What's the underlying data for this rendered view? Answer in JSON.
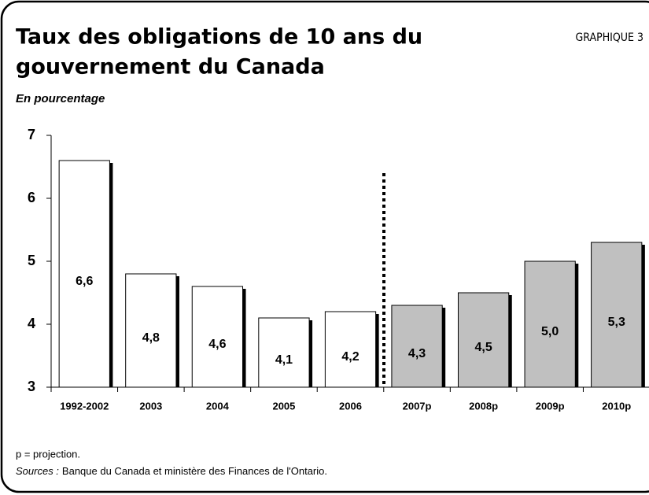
{
  "chart_data": {
    "type": "bar",
    "title": [
      "Taux des obligations de 10 ans du",
      "gouvernement du Canada"
    ],
    "chart_number": "GRAPHIQUE 3",
    "subtitle": "En pourcentage",
    "categories": [
      "1992-2002",
      "2003",
      "2004",
      "2005",
      "2006",
      "2007p",
      "2008p",
      "2009p",
      "2010p"
    ],
    "values": [
      6.6,
      4.8,
      4.6,
      4.1,
      4.2,
      4.3,
      4.5,
      5.0,
      5.3
    ],
    "value_labels": [
      "6,6",
      "4,8",
      "4,6",
      "4,1",
      "4,2",
      "4,3",
      "4,5",
      "5,0",
      "5,3"
    ],
    "colors": [
      "#ffffff",
      "#ffffff",
      "#ffffff",
      "#ffffff",
      "#ffffff",
      "#c0c0c0",
      "#c0c0c0",
      "#c0c0c0",
      "#c0c0c0"
    ],
    "ylim": [
      3,
      7
    ],
    "yticks": [
      3,
      4,
      5,
      6,
      7
    ],
    "footnote": "p = projection.",
    "sources_label": "Sources :",
    "sources": "Banque du Canada et ministère des Finances de l'Ontario."
  }
}
